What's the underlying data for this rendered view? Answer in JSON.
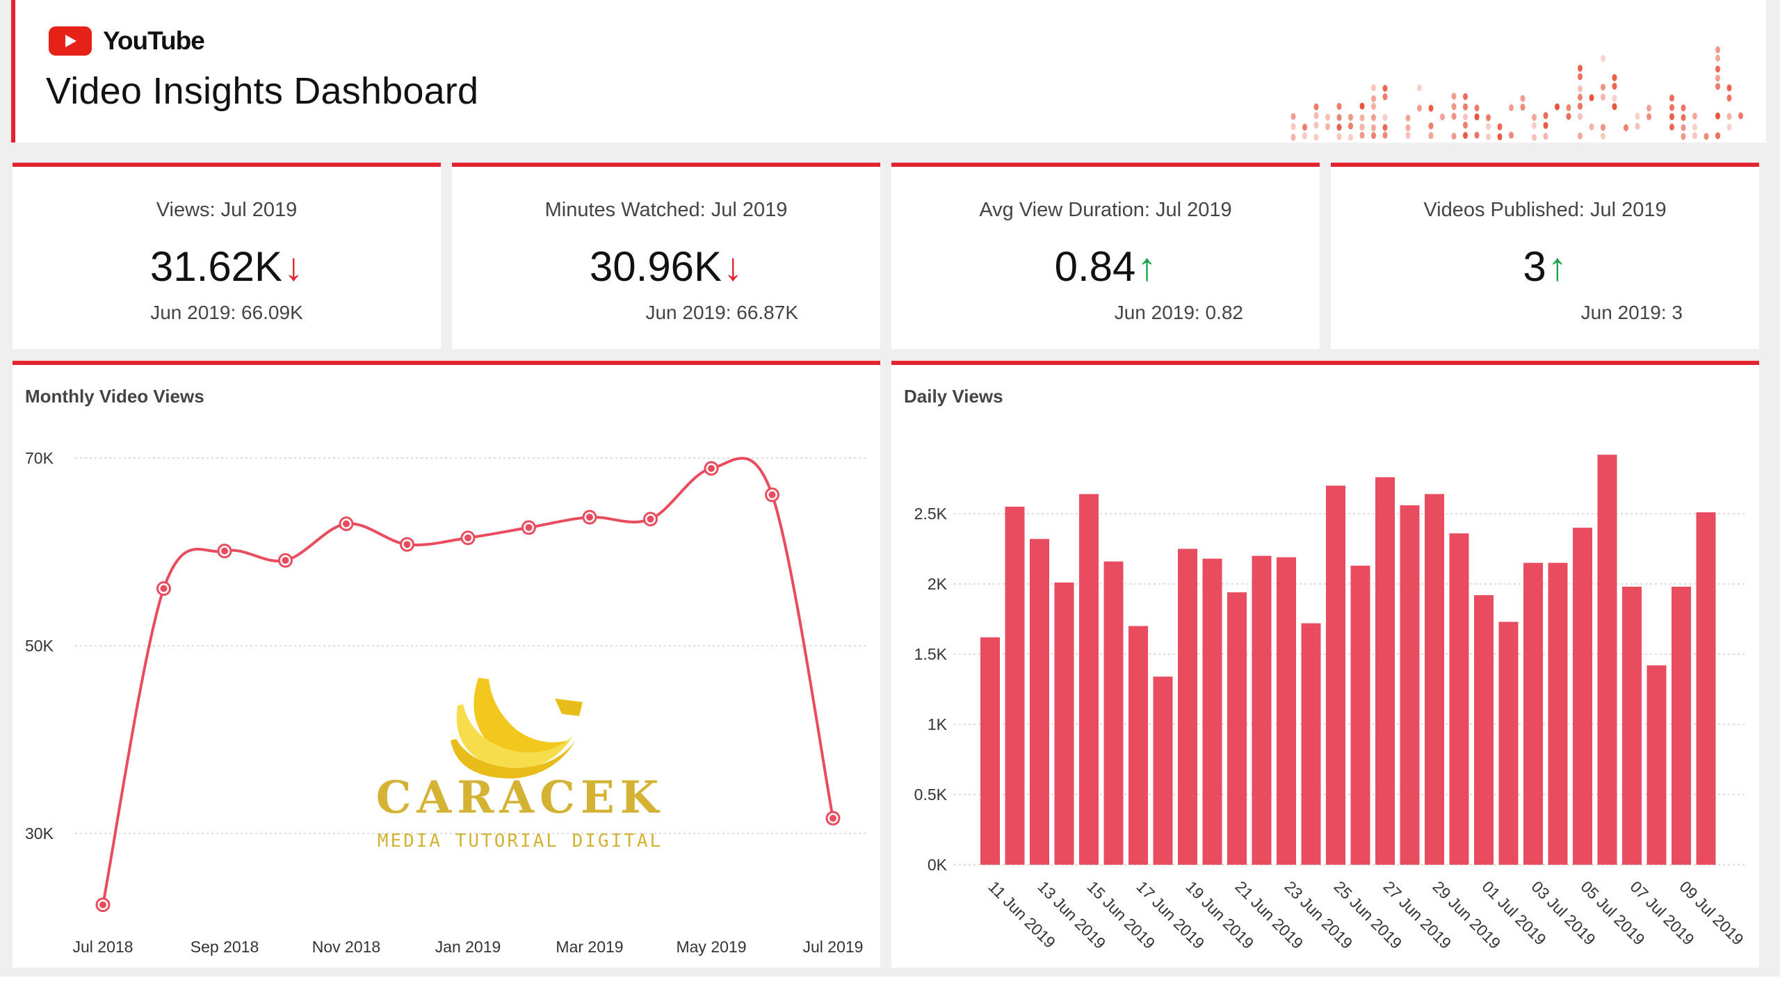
{
  "header": {
    "brand": "YouTube",
    "title": "Video Insights Dashboard",
    "accent_color": "#e3232f"
  },
  "kpis": [
    {
      "title": "Views: Jul 2019",
      "value": "31.62K",
      "trend": "down",
      "trend_icon": "arrow-down-icon",
      "previous": "Jun 2019: 66.09K"
    },
    {
      "title": "Minutes Watched: Jul 2019",
      "value": "30.96K",
      "trend": "down",
      "trend_icon": "arrow-down-icon",
      "previous": "Jun 2019: 66.87K"
    },
    {
      "title": "Avg View Duration: Jul 2019",
      "value": "0.84",
      "trend": "up",
      "trend_icon": "arrow-up-icon",
      "previous": "Jun 2019: 0.82"
    },
    {
      "title": "Videos Published: Jul 2019",
      "value": "3",
      "trend": "up",
      "trend_icon": "arrow-up-icon",
      "previous": "Jun 2019: 3"
    }
  ],
  "colors": {
    "up": "#1aa34a",
    "down": "#e3232f",
    "series": "#ea4c5f"
  },
  "watermark": {
    "line1": "CARACEK",
    "line2": "MEDIA TUTORIAL DIGITAL"
  },
  "chart_data": [
    {
      "type": "line",
      "title": "Monthly Video Views",
      "xlabel": "",
      "ylabel": "",
      "x": [
        "Jul 2018",
        "Aug 2018",
        "Sep 2018",
        "Oct 2018",
        "Nov 2018",
        "Dec 2018",
        "Jan 2019",
        "Feb 2019",
        "Mar 2019",
        "Apr 2019",
        "May 2019",
        "Jun 2019",
        "Jul 2019"
      ],
      "xtick_labels": [
        "Jul 2018",
        "Sep 2018",
        "Nov 2018",
        "Jan 2019",
        "Mar 2019",
        "May 2019",
        "Jul 2019"
      ],
      "series": [
        {
          "name": "Views",
          "values": [
            22400,
            56100,
            60100,
            59100,
            63000,
            60800,
            61500,
            62600,
            63700,
            63500,
            68900,
            66090,
            31620
          ]
        }
      ],
      "yticks": [
        30000,
        50000,
        70000
      ],
      "ytick_labels": [
        "30K",
        "50K",
        "70K"
      ],
      "ylim": [
        20000,
        70000
      ],
      "grid": true,
      "legend": "none"
    },
    {
      "type": "bar",
      "title": "Daily Views",
      "xlabel": "",
      "ylabel": "",
      "categories": [
        "11 Jun 2019",
        "12 Jun 2019",
        "13 Jun 2019",
        "14 Jun 2019",
        "15 Jun 2019",
        "16 Jun 2019",
        "17 Jun 2019",
        "18 Jun 2019",
        "19 Jun 2019",
        "20 Jun 2019",
        "21 Jun 2019",
        "22 Jun 2019",
        "23 Jun 2019",
        "24 Jun 2019",
        "25 Jun 2019",
        "26 Jun 2019",
        "27 Jun 2019",
        "28 Jun 2019",
        "29 Jun 2019",
        "30 Jun 2019",
        "01 Jul 2019",
        "02 Jul 2019",
        "03 Jul 2019",
        "04 Jul 2019",
        "05 Jul 2019",
        "06 Jul 2019",
        "07 Jul 2019",
        "08 Jul 2019",
        "09 Jul 2019",
        "10 Jul 2019"
      ],
      "xtick_labels": [
        "11 Jun 2019",
        "13 Jun 2019",
        "15 Jun 2019",
        "17 Jun 2019",
        "19 Jun 2019",
        "21 Jun 2019",
        "23 Jun 2019",
        "25 Jun 2019",
        "27 Jun 2019",
        "29 Jun 2019",
        "01 Jul 2019",
        "03 Jul 2019",
        "05 Jul 2019",
        "07 Jul 2019",
        "09 Jul 2019"
      ],
      "values": [
        1620,
        2550,
        2320,
        2010,
        2640,
        2160,
        1700,
        1340,
        2250,
        2180,
        1940,
        2200,
        2190,
        1720,
        2700,
        2130,
        2760,
        2560,
        2640,
        2360,
        1920,
        1730,
        2150,
        2150,
        2400,
        2920,
        1980,
        1420,
        1980,
        2510
      ],
      "yticks": [
        0,
        500,
        1000,
        1500,
        2000,
        2500
      ],
      "ytick_labels": [
        "0K",
        "0.5K",
        "1K",
        "1.5K",
        "2K",
        "2.5K"
      ],
      "ylim": [
        0,
        3000
      ],
      "grid": true,
      "legend": "none"
    }
  ]
}
